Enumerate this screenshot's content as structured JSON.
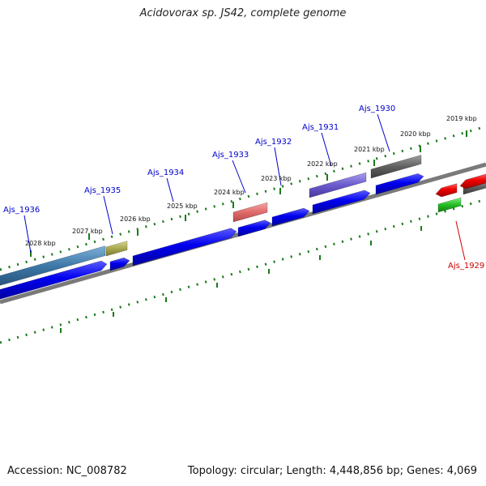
{
  "title": "Acidovorax sp. JS42, complete genome",
  "footer": {
    "accession": "Accession: NC_008782",
    "summary": "Topology: circular; Length: 4,448,856 bp; Genes: 4,069"
  },
  "colors": {
    "plus_cds": "#0000ee",
    "minus_cds": "#ee0000",
    "rna_gene": "#22bb22",
    "backbone": "#7a7a7a",
    "ticks": "#1a7a1a",
    "gene_label": "#0000cc",
    "gene_label_minus": "#cc0000"
  },
  "ticks": [
    {
      "label": "2028 kbp"
    },
    {
      "label": "2027 kbp"
    },
    {
      "label": "2026 kbp"
    },
    {
      "label": "2025 kbp"
    },
    {
      "label": "2024 kbp"
    },
    {
      "label": "2023 kbp"
    },
    {
      "label": "2022 kbp"
    },
    {
      "label": "2021 kbp"
    },
    {
      "label": "2020 kbp"
    },
    {
      "label": "2019 kbp"
    }
  ],
  "gene_labels": [
    {
      "name": "Ajs_1936"
    },
    {
      "name": "Ajs_1935"
    },
    {
      "name": "Ajs_1934"
    },
    {
      "name": "Ajs_1933"
    },
    {
      "name": "Ajs_1932"
    },
    {
      "name": "Ajs_1931"
    },
    {
      "name": "Ajs_1930"
    },
    {
      "name": "Ajs_1929"
    }
  ]
}
